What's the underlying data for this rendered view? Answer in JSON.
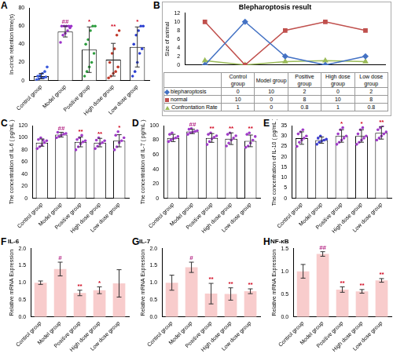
{
  "chart_data": [
    {
      "panel": "A",
      "type": "bar",
      "y_label": "In-circle retention time(s)",
      "categories": [
        "Control group",
        "Model group",
        "Positive group",
        "High dose group",
        "Low dose group"
      ],
      "values": [
        5,
        54,
        34,
        23,
        37
      ],
      "errors": [
        3,
        6,
        25,
        18,
        22
      ],
      "annotations": [
        null,
        "##",
        "*",
        "**",
        "*"
      ],
      "points": [
        [
          1,
          2,
          3,
          3,
          4,
          5,
          6,
          8,
          10,
          15
        ],
        [
          42,
          50,
          52,
          55,
          58,
          60,
          60,
          60,
          60,
          60
        ],
        [
          5,
          10,
          15,
          20,
          30,
          40,
          45,
          55,
          60,
          60
        ],
        [
          3,
          5,
          8,
          10,
          15,
          20,
          30,
          35,
          50,
          55
        ],
        [
          5,
          10,
          20,
          30,
          35,
          40,
          50,
          55,
          60,
          60
        ]
      ],
      "point_colors": [
        "#3b5bdb",
        "#9b30c8",
        "#2e9e3f",
        "#c0392b",
        "#2b3fd1"
      ],
      "color": "#ffffff",
      "ylim": [
        0,
        80
      ],
      "yticks": [
        0,
        20,
        40,
        60,
        80
      ],
      "grid": false
    },
    {
      "panel": "B",
      "type": "line",
      "title": "Blepharoptosis result",
      "y_label": "Size of animal",
      "categories": [
        "Control group",
        "Model group",
        "Positive group",
        "High dose group",
        "Low dose group"
      ],
      "series": [
        {
          "name": "blepharoptosis",
          "color": "#4472c4",
          "marker": "diamond",
          "values": [
            0,
            10,
            2,
            0,
            2
          ]
        },
        {
          "name": "normal",
          "color": "#c0504d",
          "marker": "square",
          "values": [
            10,
            0,
            8,
            10,
            8
          ]
        },
        {
          "name": "Confrontation Rate",
          "color": "#9bbb59",
          "marker": "triangle",
          "values": [
            1,
            0,
            0.8,
            1,
            0.8
          ]
        }
      ],
      "ylim": [
        0,
        12
      ],
      "yticks": [
        0,
        2,
        4,
        6,
        8,
        10,
        12
      ],
      "grid": false,
      "tick_labels": "y"
    },
    {
      "panel": "C",
      "type": "bar",
      "y_label": "The concentration of IL-6 ( pg/mL )",
      "categories": [
        "Control group",
        "Model group",
        "Positive group",
        "High dose group",
        "Low dose group"
      ],
      "values": [
        92,
        105,
        93,
        92,
        95
      ],
      "errors": [
        6,
        4,
        8,
        7,
        10
      ],
      "annotations": [
        null,
        "##",
        "**",
        "**",
        "*"
      ],
      "points": [
        [
          82,
          85,
          88,
          92,
          95,
          97,
          100,
          96
        ],
        [
          100,
          102,
          104,
          106,
          107,
          109
        ],
        [
          80,
          85,
          90,
          93,
          95,
          97,
          100,
          104
        ],
        [
          82,
          86,
          90,
          92,
          95,
          96,
          100
        ],
        [
          80,
          85,
          92,
          95,
          100,
          104,
          110
        ]
      ],
      "point_colors": [
        "#a03cc8",
        "#a03cc8",
        "#a03cc8",
        "#a03cc8",
        "#a03cc8"
      ],
      "color": "#ffffff",
      "ylim": [
        0,
        120
      ],
      "yticks": [
        0,
        20,
        40,
        60,
        80,
        100,
        120
      ],
      "grid": false
    },
    {
      "panel": "D",
      "type": "bar",
      "y_label": "The concentration of IL-7 ( pg/mL )",
      "categories": [
        "Control group",
        "Model group",
        "Positive group",
        "High dose group",
        "Low dose group"
      ],
      "values": [
        83,
        92,
        83,
        82,
        79
      ],
      "errors": [
        5,
        3,
        6,
        8,
        8
      ],
      "annotations": [
        null,
        "##",
        "**",
        "**",
        "**"
      ],
      "points": [
        [
          78,
          80,
          82,
          83,
          85,
          88,
          90
        ],
        [
          88,
          90,
          91,
          92,
          93,
          95,
          96
        ],
        [
          74,
          78,
          82,
          84,
          86,
          88,
          90
        ],
        [
          72,
          76,
          80,
          83,
          86,
          88,
          90
        ],
        [
          70,
          72,
          76,
          80,
          85,
          88,
          90
        ]
      ],
      "point_colors": [
        "#a03cc8",
        "#a03cc8",
        "#a03cc8",
        "#a03cc8",
        "#a03cc8"
      ],
      "color": "#ffffff",
      "ylim": [
        0,
        100
      ],
      "yticks": [
        0,
        20,
        40,
        60,
        80,
        100
      ],
      "grid": false
    },
    {
      "panel": "E",
      "type": "bar",
      "y_label": "The concentration of IL-10 ( pg/mL )",
      "categories": [
        "Control group",
        "Model group",
        "Positive group",
        "High dose group",
        "Low dose group"
      ],
      "values": [
        29,
        28,
        30,
        30,
        31.5
      ],
      "errors": [
        3,
        1.5,
        3,
        3,
        3
      ],
      "annotations": [
        null,
        null,
        "*",
        "*",
        "**"
      ],
      "points": [
        [
          25,
          27,
          28,
          29,
          30,
          31,
          32,
          33
        ],
        [
          26,
          27,
          27.5,
          28,
          28.5,
          29,
          30
        ],
        [
          26,
          27,
          28,
          29,
          30,
          31,
          33,
          34
        ],
        [
          26,
          27,
          28,
          29,
          30,
          31,
          33,
          34
        ],
        [
          28,
          29,
          30,
          31,
          32,
          33,
          34,
          35
        ]
      ],
      "point_colors": [
        "#a03cc8",
        "#3b3bd1",
        "#a03cc8",
        "#a03cc8",
        "#a03cc8"
      ],
      "color": "#ffffff",
      "ylim": [
        0,
        35
      ],
      "yticks": [
        0,
        5,
        10,
        15,
        20,
        25,
        30,
        35
      ],
      "grid": false
    },
    {
      "panel": "F",
      "type": "bar",
      "title": "IL-6",
      "y_label": "Relative mRNA Expression",
      "categories": [
        "Control group",
        "Model group",
        "Positive group",
        "High dose group",
        "Low dose group"
      ],
      "values": [
        1.0,
        1.4,
        0.7,
        0.78,
        0.98
      ],
      "errors": [
        0.05,
        0.2,
        0.08,
        0.1,
        0.4
      ],
      "annotations": [
        null,
        "#",
        "**",
        "*",
        null
      ],
      "color": "#f8cccc",
      "ylim": [
        0,
        2
      ],
      "yticks": [
        {
          "value": 0,
          "label": "0.0"
        },
        {
          "value": 0.5,
          "label": "0.5"
        },
        {
          "value": 1,
          "label": "1.0"
        },
        {
          "value": 1.5,
          "label": "1.5"
        },
        {
          "value": 2,
          "label": "2.0"
        }
      ],
      "grid": false
    },
    {
      "panel": "G",
      "type": "bar",
      "title": "IL-7",
      "y_label": "Relative mRNA Expression",
      "categories": [
        "Control group",
        "Model group",
        "Positive group",
        "High dose group",
        "Low dose group"
      ],
      "values": [
        1.0,
        1.45,
        0.68,
        0.67,
        0.75
      ],
      "errors": [
        0.22,
        0.15,
        0.3,
        0.18,
        0.07
      ],
      "annotations": [
        null,
        "#",
        "**",
        "**",
        "**"
      ],
      "color": "#f8cccc",
      "ylim": [
        0,
        2
      ],
      "yticks": [
        {
          "value": 0,
          "label": "0.0"
        },
        {
          "value": 0.5,
          "label": "0.5"
        },
        {
          "value": 1,
          "label": "1.0"
        },
        {
          "value": 1.5,
          "label": "1.5"
        },
        {
          "value": 2,
          "label": "2.0"
        }
      ],
      "grid": false
    },
    {
      "panel": "H",
      "type": "bar",
      "title": "NF-κB",
      "y_label": "Relative mRNA Expression",
      "categories": [
        "Control group",
        "Model group",
        "Positive group",
        "High dose group",
        "Low dose group"
      ],
      "values": [
        1.0,
        1.38,
        0.6,
        0.56,
        0.8
      ],
      "errors": [
        0.15,
        0.05,
        0.06,
        0.04,
        0.04
      ],
      "annotations": [
        null,
        "##",
        "**",
        "**",
        "**"
      ],
      "color": "#f8cccc",
      "ylim": [
        0,
        1.5
      ],
      "yticks": [
        {
          "value": 0,
          "label": "0.0"
        },
        {
          "value": 0.5,
          "label": "0.5"
        },
        {
          "value": 1,
          "label": "1.0"
        },
        {
          "value": 1.5,
          "label": "1.5"
        }
      ],
      "grid": false
    }
  ]
}
